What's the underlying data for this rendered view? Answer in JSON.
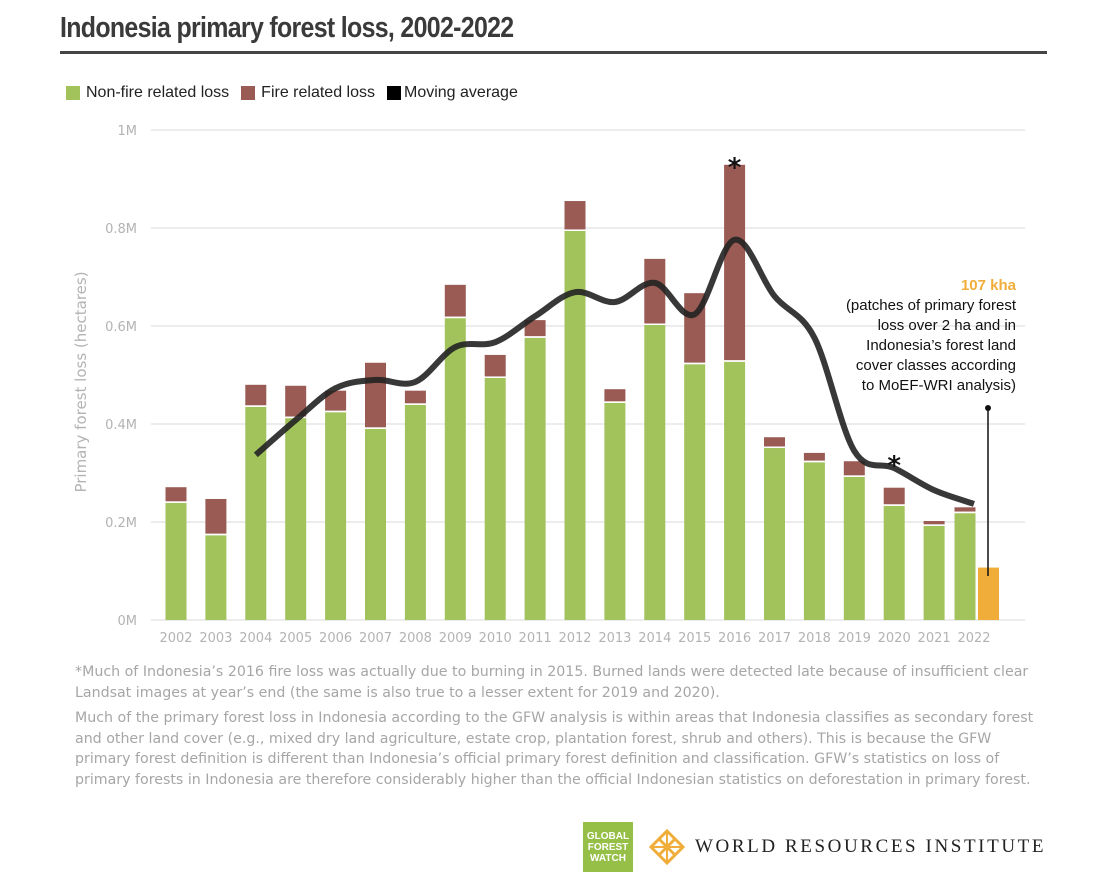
{
  "title": "Indonesia primary forest loss, 2002-2022",
  "legend": [
    {
      "label": "Non-fire related loss",
      "color": "#a2c25c"
    },
    {
      "label": "Fire related loss",
      "color": "#995b53"
    },
    {
      "label": "Moving average",
      "color": "#000000"
    }
  ],
  "annotation": {
    "value": "107 kha",
    "lines": [
      "(patches of primary forest",
      "loss over 2 ha and in",
      "Indonesia’s forest land",
      "cover classes according",
      "to MoEF-WRI analysis)"
    ],
    "color": "#f0ad3a"
  },
  "asterisk": "*",
  "notes": [
    "*Much of Indonesia’s 2016 fire loss was actually due to burning in 2015. Burned lands were detected late because of insufficient clear Landsat images at year’s end (the same is also true to a lesser extent for 2019 and 2020).",
    "Much of the primary forest loss in Indonesia according to the GFW analysis is within areas that Indonesia classifies as secondary forest and other land cover (e.g., mixed dry land agriculture, estate crop, plantation forest, shrub and others). This is because the GFW primary forest definition is different than Indonesia’s official primary forest definition and classification. GFW’s statistics on loss of primary forests in Indonesia are therefore considerably higher than the official Indonesian statistics on deforestation in primary forest."
  ],
  "logos": {
    "gfw": [
      "GLOBAL",
      "FOREST",
      "WATCH"
    ],
    "wri": "WORLD RESOURCES INSTITUTE"
  },
  "chart_data": {
    "type": "bar",
    "stacked": true,
    "title": "Indonesia primary forest loss, 2002-2022",
    "xlabel": "",
    "ylabel": "Primary forest loss (hectares)",
    "ylim": [
      0,
      1000000
    ],
    "yticks": [
      0,
      200000,
      400000,
      600000,
      800000,
      1000000
    ],
    "ytick_labels": [
      "0M",
      "0.2M",
      "0.4M",
      "0.6M",
      "0.8M",
      "1M"
    ],
    "grid": true,
    "legend_position": "top-left",
    "categories": [
      "2002",
      "2003",
      "2004",
      "2005",
      "2006",
      "2007",
      "2008",
      "2009",
      "2010",
      "2011",
      "2012",
      "2013",
      "2014",
      "2015",
      "2016",
      "2017",
      "2018",
      "2019",
      "2020",
      "2021",
      "2022"
    ],
    "series": [
      {
        "name": "Non-fire related loss",
        "color": "#a2c25c",
        "values": [
          239000,
          173000,
          435000,
          412000,
          424000,
          390000,
          439000,
          616000,
          494000,
          576000,
          794000,
          443000,
          602000,
          522000,
          527000,
          351000,
          322000,
          292000,
          233000,
          192000,
          218000
        ]
      },
      {
        "name": "Fire related loss",
        "color": "#995b53",
        "values": [
          32000,
          74000,
          45000,
          66000,
          44000,
          135000,
          29000,
          68000,
          47000,
          36000,
          61000,
          28000,
          135000,
          145000,
          402000,
          22000,
          19000,
          32000,
          37000,
          10000,
          12000
        ]
      },
      {
        "name": "Moving average",
        "type": "line",
        "color": "#000000",
        "values": [
          null,
          null,
          337000,
          408000,
          473000,
          490000,
          486000,
          557000,
          567000,
          620000,
          669000,
          649000,
          688000,
          624000,
          776000,
          661000,
          576000,
          345000,
          310000,
          265000,
          237000
        ]
      }
    ],
    "extra_bar": {
      "category": "2022",
      "label": "107 kha",
      "value": 107000,
      "color": "#f0ad3a"
    },
    "asterisks": [
      "2016",
      "2020"
    ]
  }
}
